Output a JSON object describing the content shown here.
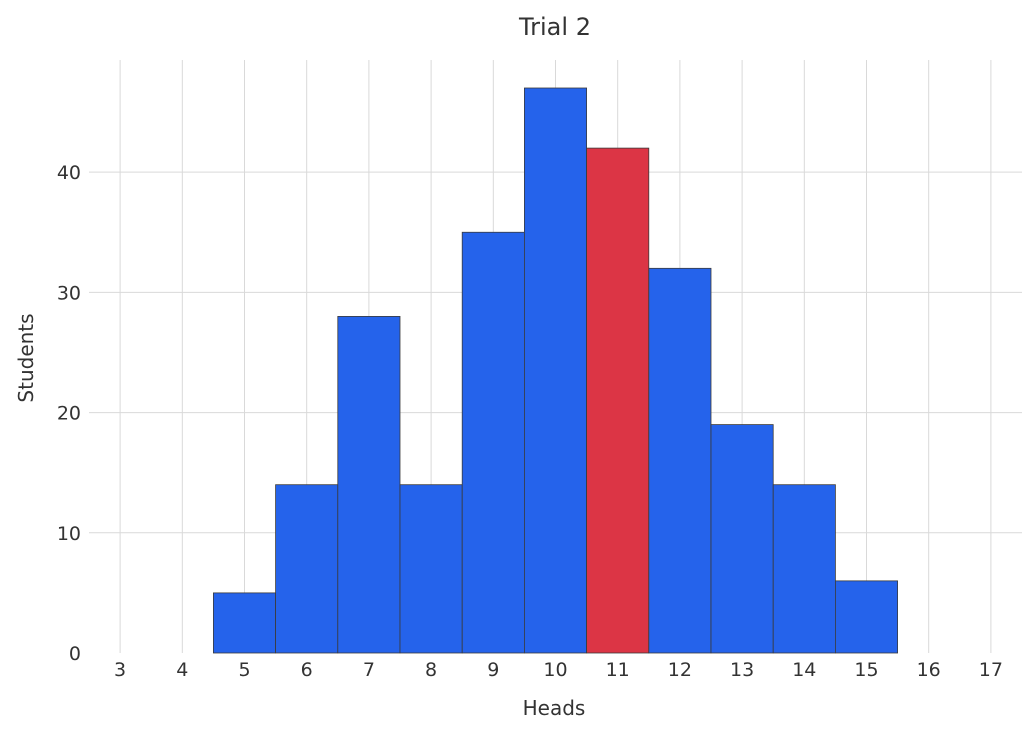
{
  "chart_data": {
    "type": "bar",
    "title": "Trial 2",
    "xlabel": "Heads",
    "ylabel": "Students",
    "x_ticks": [
      3,
      4,
      5,
      6,
      7,
      8,
      9,
      10,
      11,
      12,
      13,
      14,
      15,
      16,
      17
    ],
    "y_ticks": [
      0,
      10,
      20,
      30,
      40
    ],
    "xlim": [
      2.5,
      17.5
    ],
    "ylim": [
      0,
      47
    ],
    "grid": true,
    "categories": [
      5,
      6,
      7,
      8,
      9,
      10,
      11,
      12,
      13,
      14,
      15
    ],
    "values": [
      5,
      14,
      28,
      14,
      35,
      47,
      42,
      32,
      19,
      14,
      6
    ],
    "highlight_category": 11,
    "colors": {
      "bar": "#2563eb",
      "highlight": "#dc3545",
      "edge": "#3a3a3a",
      "grid": "#d9d9d9",
      "text": "#333333"
    }
  }
}
